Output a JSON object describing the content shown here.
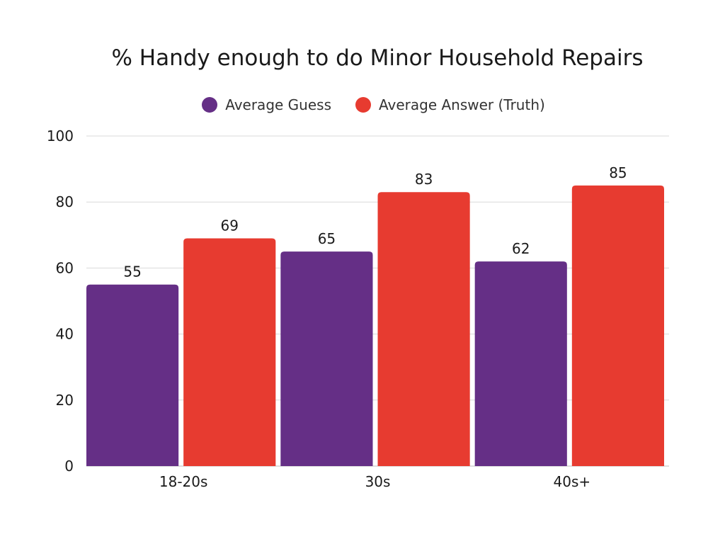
{
  "chart_data": {
    "type": "bar",
    "title": "% Handy enough to do Minor Household Repairs",
    "categories": [
      "18-20s",
      "30s",
      "40s+"
    ],
    "series": [
      {
        "name": "Average Guess",
        "values": [
          55,
          65,
          62
        ],
        "color": "#652f86"
      },
      {
        "name": "Average Answer (Truth)",
        "values": [
          69,
          83,
          85
        ],
        "color": "#e73b30"
      }
    ],
    "ylim": [
      0,
      100
    ],
    "yticks": [
      0,
      20,
      40,
      60,
      80,
      100
    ],
    "grid": true,
    "legend_position": "top-center",
    "data_labels": true
  }
}
